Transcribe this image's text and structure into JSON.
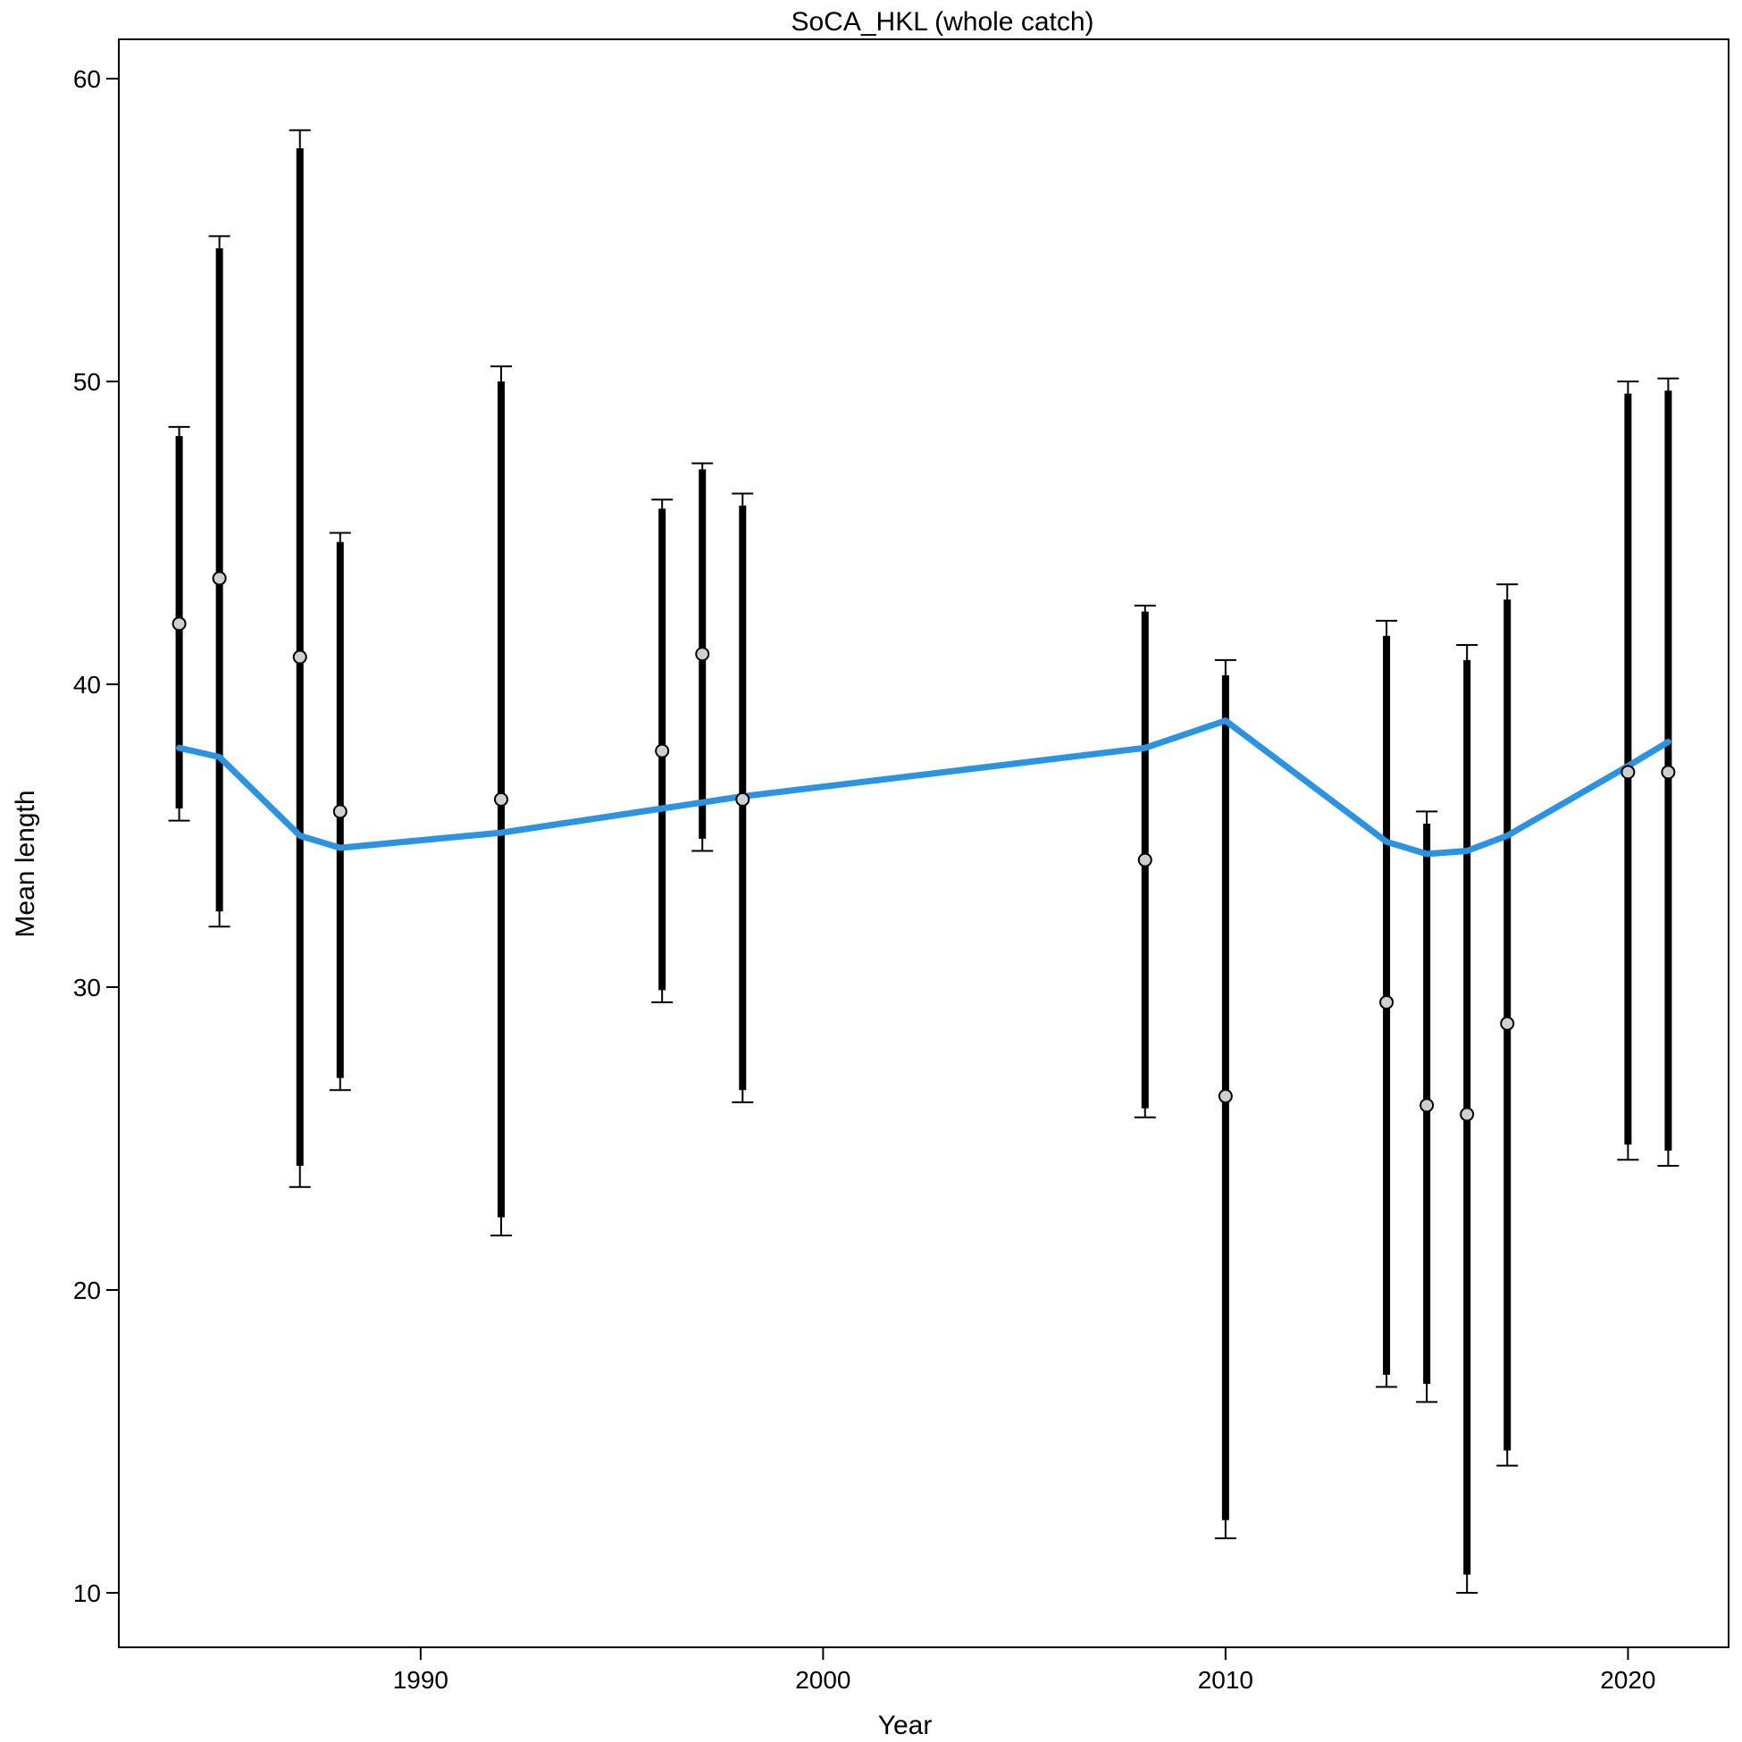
{
  "chart_data": {
    "type": "scatter",
    "title": "SoCA_HKL (whole catch)",
    "xlabel": "Year",
    "ylabel": "Mean length",
    "xlim": [
      1982.5,
      2022.5
    ],
    "ylim": [
      8.2,
      61.3
    ],
    "xticks": [
      1990,
      2000,
      2010,
      2020
    ],
    "yticks": [
      10,
      20,
      30,
      40,
      50,
      60
    ],
    "grid": false,
    "legend": "none",
    "colors": {
      "expected_line": "#2b93e0",
      "error_bar": "#000000",
      "point_fill": "#cfcfcf",
      "point_stroke": "#000000"
    },
    "series": [
      {
        "kind": "observed_with_intervals",
        "points": [
          {
            "x": 1984,
            "y": 42.0,
            "inner_lo": 35.9,
            "inner_hi": 48.2,
            "outer_lo": 35.5,
            "outer_hi": 48.5
          },
          {
            "x": 1985,
            "y": 43.5,
            "inner_lo": 32.5,
            "inner_hi": 54.4,
            "outer_lo": 32.0,
            "outer_hi": 54.8
          },
          {
            "x": 1987,
            "y": 40.9,
            "inner_lo": 24.1,
            "inner_hi": 57.7,
            "outer_lo": 23.4,
            "outer_hi": 58.3
          },
          {
            "x": 1988,
            "y": 35.8,
            "inner_lo": 27.0,
            "inner_hi": 44.7,
            "outer_lo": 26.6,
            "outer_hi": 45.0
          },
          {
            "x": 1992,
            "y": 36.2,
            "inner_lo": 22.4,
            "inner_hi": 50.0,
            "outer_lo": 21.8,
            "outer_hi": 50.5
          },
          {
            "x": 1996,
            "y": 37.8,
            "inner_lo": 29.9,
            "inner_hi": 45.8,
            "outer_lo": 29.5,
            "outer_hi": 46.1
          },
          {
            "x": 1997,
            "y": 41.0,
            "inner_lo": 34.9,
            "inner_hi": 47.1,
            "outer_lo": 34.5,
            "outer_hi": 47.3
          },
          {
            "x": 1998,
            "y": 36.2,
            "inner_lo": 26.6,
            "inner_hi": 45.9,
            "outer_lo": 26.2,
            "outer_hi": 46.3
          },
          {
            "x": 2008,
            "y": 34.2,
            "inner_lo": 26.0,
            "inner_hi": 42.4,
            "outer_lo": 25.7,
            "outer_hi": 42.6
          },
          {
            "x": 2010,
            "y": 26.4,
            "inner_lo": 12.4,
            "inner_hi": 40.3,
            "outer_lo": 11.8,
            "outer_hi": 40.8
          },
          {
            "x": 2014,
            "y": 29.5,
            "inner_lo": 17.2,
            "inner_hi": 41.6,
            "outer_lo": 16.8,
            "outer_hi": 42.1
          },
          {
            "x": 2015,
            "y": 26.1,
            "inner_lo": 16.9,
            "inner_hi": 35.4,
            "outer_lo": 16.3,
            "outer_hi": 35.8
          },
          {
            "x": 2016,
            "y": 25.8,
            "inner_lo": 10.6,
            "inner_hi": 40.8,
            "outer_lo": 10.0,
            "outer_hi": 41.3
          },
          {
            "x": 2017,
            "y": 28.8,
            "inner_lo": 14.7,
            "inner_hi": 42.8,
            "outer_lo": 14.2,
            "outer_hi": 43.3
          },
          {
            "x": 2020,
            "y": 37.1,
            "inner_lo": 24.8,
            "inner_hi": 49.6,
            "outer_lo": 24.3,
            "outer_hi": 50.0
          },
          {
            "x": 2021,
            "y": 37.1,
            "inner_lo": 24.6,
            "inner_hi": 49.7,
            "outer_lo": 24.1,
            "outer_hi": 50.1
          }
        ]
      },
      {
        "kind": "expected_line",
        "points": [
          {
            "x": 1984,
            "y": 37.9
          },
          {
            "x": 1985,
            "y": 37.6
          },
          {
            "x": 1987,
            "y": 35.0
          },
          {
            "x": 1988,
            "y": 34.6
          },
          {
            "x": 1992,
            "y": 35.1
          },
          {
            "x": 1996,
            "y": 35.9
          },
          {
            "x": 1997,
            "y": 36.1
          },
          {
            "x": 1998,
            "y": 36.3
          },
          {
            "x": 2008,
            "y": 37.9
          },
          {
            "x": 2010,
            "y": 38.8
          },
          {
            "x": 2014,
            "y": 34.8
          },
          {
            "x": 2015,
            "y": 34.4
          },
          {
            "x": 2016,
            "y": 34.5
          },
          {
            "x": 2017,
            "y": 35.0
          },
          {
            "x": 2020,
            "y": 37.3
          },
          {
            "x": 2021,
            "y": 38.1
          }
        ]
      }
    ]
  }
}
